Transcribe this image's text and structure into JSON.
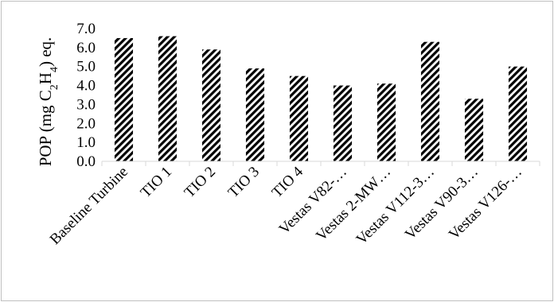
{
  "chart_data": {
    "type": "bar",
    "title": "",
    "xlabel": "",
    "ylabel": {
      "prefix": "POP (mg C",
      "sub1": "2",
      "mid": "H",
      "sub2": "4",
      "suffix": ") eq."
    },
    "ylim": [
      0,
      7
    ],
    "yticks": [
      "0.0",
      "1.0",
      "2.0",
      "3.0",
      "4.0",
      "5.0",
      "6.0",
      "7.0"
    ],
    "grid": false,
    "legend": "none",
    "categories": [
      "Baseline Turbine",
      "TIO 1",
      "TIO 2",
      "TIO 3",
      "TIO 4",
      "Vestas V82-…",
      "Vestas 2-MW…",
      "Vestas V112-3…",
      "Vestas V90-3…",
      "Vestas V126-…"
    ],
    "values": [
      6.5,
      6.6,
      5.9,
      4.9,
      4.5,
      4.0,
      4.1,
      6.3,
      3.3,
      5.0
    ],
    "bar_pattern": "diagonal-hatch",
    "colors": {
      "bar_stripe": "#000000",
      "bar_bg": "#ffffff",
      "axis": "#d9d9d9",
      "frame": "#bfbfbf"
    }
  }
}
